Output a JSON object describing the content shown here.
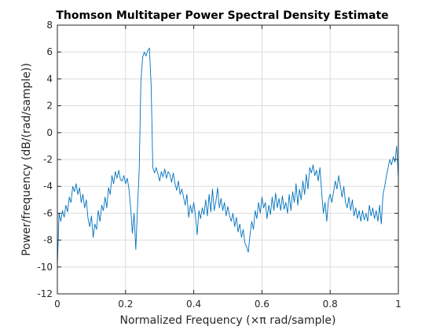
{
  "chart_data": {
    "type": "line",
    "title": "Thomson Multitaper Power Spectral Density Estimate",
    "xlabel": "Normalized Frequency  (×π rad/sample)",
    "ylabel": "Power/frequency (dB/(rad/sample))",
    "xlim": [
      0,
      1
    ],
    "ylim": [
      -12,
      8
    ],
    "xticks": [
      "0",
      "0.2",
      "0.4",
      "0.6",
      "0.8",
      "1"
    ],
    "yticks": [
      "-12",
      "-10",
      "-8",
      "-6",
      "-4",
      "-2",
      "0",
      "2",
      "4",
      "6",
      "8"
    ],
    "grid": true,
    "box": true,
    "series": [
      {
        "color": "#0072bd",
        "x": [
          0,
          0.005,
          0.01,
          0.015,
          0.02,
          0.025,
          0.03,
          0.035,
          0.04,
          0.045,
          0.05,
          0.055,
          0.06,
          0.065,
          0.07,
          0.075,
          0.08,
          0.085,
          0.09,
          0.095,
          0.1,
          0.105,
          0.11,
          0.115,
          0.12,
          0.125,
          0.13,
          0.135,
          0.14,
          0.145,
          0.15,
          0.155,
          0.16,
          0.165,
          0.17,
          0.175,
          0.18,
          0.185,
          0.19,
          0.195,
          0.2,
          0.205,
          0.21,
          0.215,
          0.22,
          0.225,
          0.23,
          0.235,
          0.24,
          0.245,
          0.25,
          0.255,
          0.26,
          0.265,
          0.27,
          0.275,
          0.28,
          0.285,
          0.29,
          0.295,
          0.3,
          0.305,
          0.31,
          0.315,
          0.32,
          0.325,
          0.33,
          0.335,
          0.34,
          0.345,
          0.35,
          0.355,
          0.36,
          0.365,
          0.37,
          0.375,
          0.38,
          0.385,
          0.39,
          0.395,
          0.4,
          0.405,
          0.41,
          0.415,
          0.42,
          0.425,
          0.43,
          0.435,
          0.44,
          0.445,
          0.45,
          0.455,
          0.46,
          0.465,
          0.47,
          0.475,
          0.48,
          0.485,
          0.49,
          0.495,
          0.5,
          0.505,
          0.51,
          0.515,
          0.52,
          0.525,
          0.53,
          0.535,
          0.54,
          0.545,
          0.55,
          0.555,
          0.56,
          0.565,
          0.57,
          0.575,
          0.58,
          0.585,
          0.59,
          0.595,
          0.6,
          0.605,
          0.61,
          0.615,
          0.62,
          0.625,
          0.63,
          0.635,
          0.64,
          0.645,
          0.65,
          0.655,
          0.66,
          0.665,
          0.67,
          0.675,
          0.68,
          0.685,
          0.69,
          0.695,
          0.7,
          0.705,
          0.71,
          0.715,
          0.72,
          0.725,
          0.73,
          0.735,
          0.74,
          0.745,
          0.75,
          0.755,
          0.76,
          0.765,
          0.77,
          0.775,
          0.78,
          0.785,
          0.79,
          0.795,
          0.8,
          0.805,
          0.81,
          0.815,
          0.82,
          0.825,
          0.83,
          0.835,
          0.84,
          0.845,
          0.85,
          0.855,
          0.86,
          0.865,
          0.87,
          0.875,
          0.88,
          0.885,
          0.89,
          0.895,
          0.9,
          0.905,
          0.91,
          0.915,
          0.92,
          0.925,
          0.93,
          0.935,
          0.94,
          0.945,
          0.95,
          0.955,
          0.96,
          0.965,
          0.97,
          0.975,
          0.98,
          0.985,
          0.99,
          0.995,
          1.0
        ],
        "y": [
          -10.0,
          -6.0,
          -6.6,
          -5.8,
          -6.3,
          -5.4,
          -5.9,
          -4.8,
          -5.2,
          -4.0,
          -4.4,
          -3.8,
          -4.6,
          -4.1,
          -5.2,
          -4.6,
          -5.6,
          -5.0,
          -6.4,
          -7.0,
          -6.2,
          -7.8,
          -6.8,
          -7.2,
          -5.8,
          -6.6,
          -5.4,
          -5.8,
          -4.8,
          -5.6,
          -4.1,
          -4.6,
          -3.2,
          -3.8,
          -2.9,
          -3.4,
          -2.8,
          -3.5,
          -3.6,
          -3.2,
          -3.8,
          -3.4,
          -4.2,
          -5.6,
          -7.5,
          -6.0,
          -8.7,
          -5.6,
          -2.8,
          3.8,
          5.6,
          6.0,
          5.7,
          6.1,
          6.3,
          3.5,
          -2.6,
          -3.0,
          -2.6,
          -3.1,
          -3.6,
          -2.9,
          -3.3,
          -2.7,
          -3.4,
          -2.9,
          -3.1,
          -3.7,
          -3.0,
          -3.8,
          -4.3,
          -3.6,
          -4.6,
          -4.2,
          -4.8,
          -5.4,
          -4.6,
          -6.3,
          -5.4,
          -6.0,
          -5.2,
          -6.2,
          -7.6,
          -5.8,
          -6.4,
          -5.6,
          -6.1,
          -5.0,
          -6.2,
          -4.6,
          -5.9,
          -4.2,
          -5.8,
          -5.1,
          -4.1,
          -5.6,
          -4.9,
          -5.8,
          -5.2,
          -6.2,
          -5.5,
          -6.2,
          -6.6,
          -6.0,
          -7.0,
          -6.3,
          -7.4,
          -6.8,
          -7.8,
          -7.2,
          -8.2,
          -8.5,
          -8.9,
          -7.6,
          -6.6,
          -7.2,
          -5.8,
          -6.4,
          -5.2,
          -6.0,
          -4.8,
          -5.6,
          -5.2,
          -6.4,
          -5.4,
          -6.1,
          -4.8,
          -5.8,
          -4.5,
          -5.6,
          -4.9,
          -5.8,
          -4.7,
          -5.7,
          -5.2,
          -6.0,
          -4.6,
          -5.8,
          -4.4,
          -5.2,
          -3.8,
          -5.4,
          -4.2,
          -5.0,
          -3.6,
          -4.6,
          -3.1,
          -4.2,
          -2.6,
          -3.0,
          -2.4,
          -3.2,
          -2.8,
          -3.6,
          -2.6,
          -4.4,
          -6.0,
          -5.2,
          -6.6,
          -5.0,
          -4.6,
          -5.2,
          -4.4,
          -3.6,
          -4.2,
          -3.2,
          -4.0,
          -4.8,
          -4.0,
          -5.2,
          -5.6,
          -4.8,
          -5.8,
          -5.0,
          -6.2,
          -5.6,
          -6.4,
          -5.8,
          -6.6,
          -5.8,
          -6.5,
          -6.0,
          -6.6,
          -5.4,
          -6.2,
          -5.6,
          -6.4,
          -5.8,
          -6.6,
          -5.4,
          -6.8,
          -4.6,
          -4.0,
          -3.2,
          -2.6,
          -2.0,
          -2.4,
          -1.8,
          -2.2,
          -1.0,
          -3.4
        ]
      }
    ]
  }
}
